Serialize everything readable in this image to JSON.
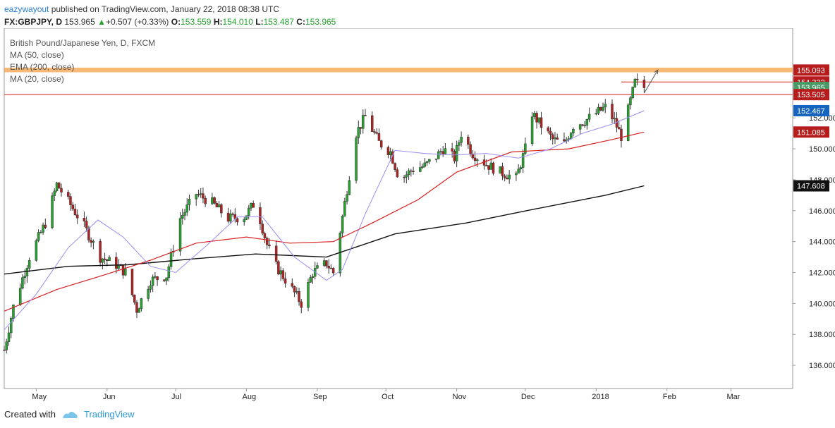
{
  "header": {
    "user": "eazywayout",
    "published_text": " published on TradingView.com, January 22, 2018 08:38 UTC",
    "symbol": "FX:GBPJPY, D",
    "last": "153.965",
    "change_arrow": "▲",
    "change": "+0.507 (+0.33%)",
    "o_label": "O:",
    "o": "153.559",
    "h_label": "H:",
    "h": "154.010",
    "l_label": "L:",
    "l": "153.487",
    "c_label": "C:",
    "c": "153.965"
  },
  "legend": [
    "British Pound/Japanese Yen, D, FXCM",
    "MA (50, close)",
    "EMA (200, close)",
    "MA (20, close)"
  ],
  "footer": {
    "created_with": "Created with",
    "brand": "TradingView"
  },
  "colors": {
    "up_candle": "#26a32e",
    "down_candle": "#b22222",
    "ma20": "#9b8cf2",
    "ma50": "#d62020",
    "ema200": "#111111",
    "band": "#f6a24a",
    "label_red": "#b71c1c",
    "label_green": "#4a9a68",
    "label_blue": "#1565c0",
    "label_black": "#111111"
  },
  "chart_data": {
    "type": "candlestick",
    "title": "British Pound/Japanese Yen, D, FXCM",
    "y_range": [
      134.5,
      157.8
    ],
    "x_range_date": [
      "2017-04-17",
      "2018-03-28"
    ],
    "y_ticks": [
      "136.000",
      "138.000",
      "140.000",
      "142.000",
      "144.000",
      "146.000",
      "148.000",
      "150.000",
      "152.000"
    ],
    "x_ticks": [
      {
        "label": "May",
        "date": "2017-05-01"
      },
      {
        "label": "Jun",
        "date": "2017-06-01"
      },
      {
        "label": "Jul",
        "date": "2017-07-01"
      },
      {
        "label": "Aug",
        "date": "2017-08-01"
      },
      {
        "label": "Sep",
        "date": "2017-09-01"
      },
      {
        "label": "Oct",
        "date": "2017-10-01"
      },
      {
        "label": "Nov",
        "date": "2017-11-01"
      },
      {
        "label": "Dec",
        "date": "2017-12-01"
      },
      {
        "label": "2018",
        "date": "2018-01-01"
      },
      {
        "label": "Feb",
        "date": "2018-02-01"
      },
      {
        "label": "Mar",
        "date": "2018-03-01"
      }
    ],
    "close_path": [
      [
        "2017-04-17",
        137.0
      ],
      [
        "2017-04-21",
        139.8
      ],
      [
        "2017-04-28",
        143.0
      ],
      [
        "2017-05-05",
        145.2
      ],
      [
        "2017-05-10",
        147.7
      ],
      [
        "2017-05-15",
        146.6
      ],
      [
        "2017-05-22",
        145.0
      ],
      [
        "2017-05-29",
        143.0
      ],
      [
        "2017-06-05",
        142.5
      ],
      [
        "2017-06-09",
        142.0
      ],
      [
        "2017-06-14",
        139.6
      ],
      [
        "2017-06-20",
        141.5
      ],
      [
        "2017-06-27",
        141.8
      ],
      [
        "2017-07-03",
        145.5
      ],
      [
        "2017-07-10",
        147.1
      ],
      [
        "2017-07-17",
        146.5
      ],
      [
        "2017-07-24",
        145.5
      ],
      [
        "2017-07-31",
        145.6
      ],
      [
        "2017-08-04",
        146.4
      ],
      [
        "2017-08-07",
        145.4
      ],
      [
        "2017-08-10",
        143.8
      ],
      [
        "2017-08-14",
        142.4
      ],
      [
        "2017-08-21",
        140.9
      ],
      [
        "2017-08-25",
        140.0
      ],
      [
        "2017-08-30",
        142.0
      ],
      [
        "2017-09-05",
        142.6
      ],
      [
        "2017-09-08",
        142.0
      ],
      [
        "2017-09-13",
        146.5
      ],
      [
        "2017-09-18",
        151.0
      ],
      [
        "2017-09-22",
        152.1
      ],
      [
        "2017-09-28",
        150.4
      ],
      [
        "2017-10-03",
        149.8
      ],
      [
        "2017-10-07",
        148.0
      ],
      [
        "2017-10-13",
        148.7
      ],
      [
        "2017-10-18",
        148.9
      ],
      [
        "2017-10-23",
        149.5
      ],
      [
        "2017-10-26",
        150.0
      ],
      [
        "2017-10-31",
        149.4
      ],
      [
        "2017-11-03",
        151.0
      ],
      [
        "2017-11-08",
        149.7
      ],
      [
        "2017-11-14",
        149.0
      ],
      [
        "2017-11-20",
        148.5
      ],
      [
        "2017-11-27",
        148.1
      ],
      [
        "2017-12-01",
        150.0
      ],
      [
        "2017-12-04",
        152.3
      ],
      [
        "2017-12-08",
        151.5
      ],
      [
        "2017-12-13",
        150.6
      ],
      [
        "2017-12-18",
        150.3
      ],
      [
        "2017-12-22",
        151.5
      ],
      [
        "2017-12-27",
        151.8
      ],
      [
        "2018-01-02",
        152.4
      ],
      [
        "2018-01-05",
        152.7
      ],
      [
        "2018-01-09",
        151.8
      ],
      [
        "2018-01-12",
        150.8
      ],
      [
        "2018-01-15",
        152.5
      ],
      [
        "2018-01-18",
        154.3
      ],
      [
        "2018-01-22",
        153.965
      ]
    ],
    "ma20_path": [
      [
        "2017-04-17",
        138.3
      ],
      [
        "2017-05-01",
        140.6
      ],
      [
        "2017-05-15",
        143.6
      ],
      [
        "2017-05-28",
        145.4
      ],
      [
        "2017-06-08",
        144.3
      ],
      [
        "2017-06-20",
        142.4
      ],
      [
        "2017-07-01",
        142.0
      ],
      [
        "2017-07-15",
        143.8
      ],
      [
        "2017-07-28",
        145.6
      ],
      [
        "2017-08-08",
        145.6
      ],
      [
        "2017-08-22",
        143.0
      ],
      [
        "2017-09-05",
        141.5
      ],
      [
        "2017-09-12",
        142.2
      ],
      [
        "2017-09-22",
        145.8
      ],
      [
        "2017-10-05",
        149.9
      ],
      [
        "2017-10-18",
        149.7
      ],
      [
        "2017-10-31",
        149.6
      ],
      [
        "2017-11-14",
        149.7
      ],
      [
        "2017-11-28",
        149.4
      ],
      [
        "2017-12-12",
        150.0
      ],
      [
        "2017-12-26",
        151.0
      ],
      [
        "2018-01-08",
        151.6
      ],
      [
        "2018-01-22",
        152.467
      ]
    ],
    "ma50_path": [
      [
        "2017-04-17",
        139.5
      ],
      [
        "2017-05-10",
        140.9
      ],
      [
        "2017-06-01",
        141.9
      ],
      [
        "2017-06-20",
        142.8
      ],
      [
        "2017-07-10",
        143.9
      ],
      [
        "2017-08-01",
        144.3
      ],
      [
        "2017-08-20",
        143.9
      ],
      [
        "2017-09-08",
        144.0
      ],
      [
        "2017-09-25",
        145.2
      ],
      [
        "2017-10-15",
        146.7
      ],
      [
        "2017-11-01",
        148.5
      ],
      [
        "2017-11-25",
        149.8
      ],
      [
        "2017-12-20",
        150.0
      ],
      [
        "2018-01-08",
        150.6
      ],
      [
        "2018-01-22",
        151.085
      ]
    ],
    "ema200_path": [
      [
        "2017-04-17",
        141.9
      ],
      [
        "2017-05-15",
        142.4
      ],
      [
        "2017-06-10",
        142.5
      ],
      [
        "2017-07-10",
        142.9
      ],
      [
        "2017-08-05",
        143.2
      ],
      [
        "2017-09-05",
        143.0
      ],
      [
        "2017-10-05",
        144.5
      ],
      [
        "2017-11-05",
        145.2
      ],
      [
        "2017-12-05",
        146.1
      ],
      [
        "2018-01-05",
        147.0
      ],
      [
        "2018-01-22",
        147.608
      ]
    ],
    "resistance_band": [
      154.95,
      155.25
    ],
    "horizontal_lines": [
      {
        "price": 154.322,
        "from": "2018-01-12",
        "to": "2018-03-28"
      },
      {
        "price": 153.505,
        "from": "2017-04-17",
        "to": "2018-03-28"
      }
    ],
    "arrow": {
      "from": [
        "2018-01-22",
        153.6
      ],
      "to": [
        "2018-01-28",
        155.1
      ]
    },
    "price_labels": [
      {
        "value": "155.093",
        "price": 155.093,
        "color": "#b71c1c"
      },
      {
        "value": "154.322",
        "price": 154.322,
        "color": "#b71c1c"
      },
      {
        "value": "153.965",
        "price": 153.965,
        "color": "#4a9a68"
      },
      {
        "value": "153.505",
        "price": 153.505,
        "color": "#b71c1c"
      },
      {
        "value": "152.467",
        "price": 152.467,
        "color": "#1565c0"
      },
      {
        "value": "151.085",
        "price": 151.085,
        "color": "#b71c1c"
      },
      {
        "value": "147.608",
        "price": 147.608,
        "color": "#111111"
      }
    ]
  }
}
